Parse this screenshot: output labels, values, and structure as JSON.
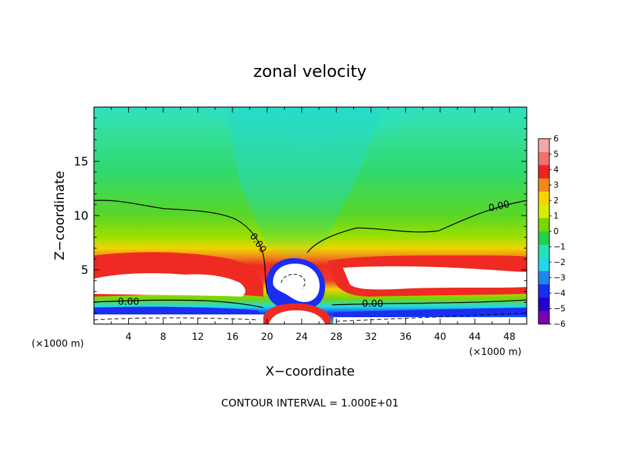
{
  "chart_data": {
    "type": "heatmap",
    "title": "zonal velocity",
    "xlabel": "X−coordinate",
    "ylabel": "Z−coordinate",
    "x_unit_left": "(×1000 m)",
    "x_unit_right": "(×1000 m)",
    "xlim": [
      0,
      50
    ],
    "ylim": [
      0,
      20
    ],
    "x_ticks": [
      4,
      8,
      12,
      16,
      20,
      24,
      28,
      32,
      36,
      40,
      44,
      48
    ],
    "y_ticks": [
      5,
      10,
      15
    ],
    "footnote": "CONTOUR INTERVAL = 1.000E+01",
    "contour_labels": [
      {
        "text": "0.00",
        "x": 4,
        "y": 2.1
      },
      {
        "text": "0.00",
        "x": 19,
        "y": 7.5
      },
      {
        "text": "0.00",
        "x": 32.2,
        "y": 1.9
      },
      {
        "text": "0.00",
        "x": 46.8,
        "y": 10.9
      }
    ],
    "colorbar": {
      "labels": [
        "6",
        "5",
        "4",
        "3",
        "2",
        "1",
        "0",
        "−1",
        "−2",
        "−3",
        "−4",
        "−5",
        "−6"
      ],
      "colors": [
        "#f2a8a8",
        "#f07070",
        "#ee2222",
        "#f28a1a",
        "#f6d400",
        "#d6ee00",
        "#7ad400",
        "#22d24a",
        "#28e2b4",
        "#22d8e8",
        "#1f86ee",
        "#1a2ef2",
        "#2200c8",
        "#7a00b4"
      ]
    }
  }
}
